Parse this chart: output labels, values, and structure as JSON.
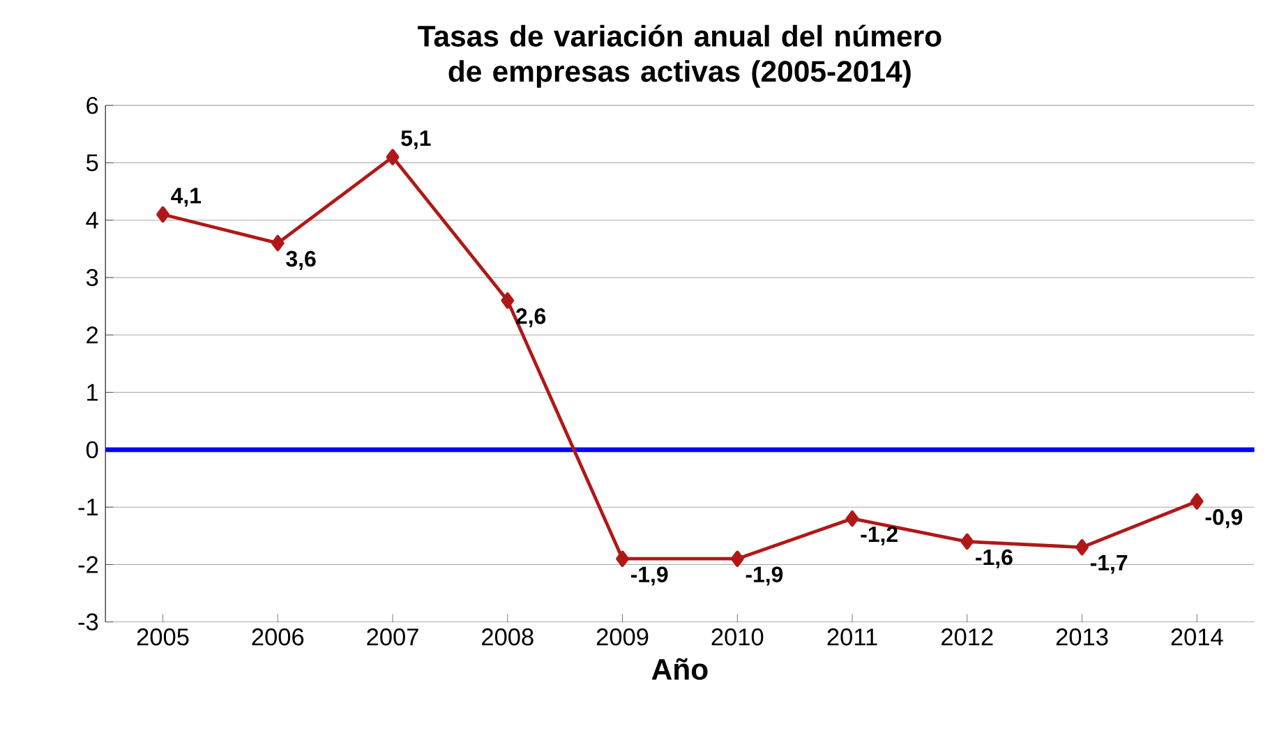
{
  "chart_data": {
    "type": "line",
    "title": "Tasas de variación anual del número de empresas activas (2005-2014)",
    "xlabel": "Año",
    "categories": [
      "2005",
      "2006",
      "2007",
      "2008",
      "2009",
      "2010",
      "2011",
      "2012",
      "2013",
      "2014"
    ],
    "values": [
      4.1,
      3.6,
      5.1,
      2.6,
      -1.9,
      -1.9,
      -1.2,
      -1.6,
      -1.7,
      -0.9
    ],
    "value_labels": [
      "4,1",
      "3,6",
      "5,1",
      "2,6",
      "-1,9",
      "-1,9",
      "-1,2",
      "-1,6",
      "-1,7",
      "-0,9"
    ],
    "color": "#b01818",
    "marker": "diamond",
    "line_style": "solid",
    "ylim": [
      -3,
      6
    ],
    "yticks": [
      -3,
      -2,
      -1,
      0,
      1,
      2,
      3,
      4,
      5,
      6
    ],
    "grid": "y",
    "ref_lines": [
      {
        "axis": "y",
        "value": 0,
        "color": "#0000ff"
      }
    ]
  }
}
